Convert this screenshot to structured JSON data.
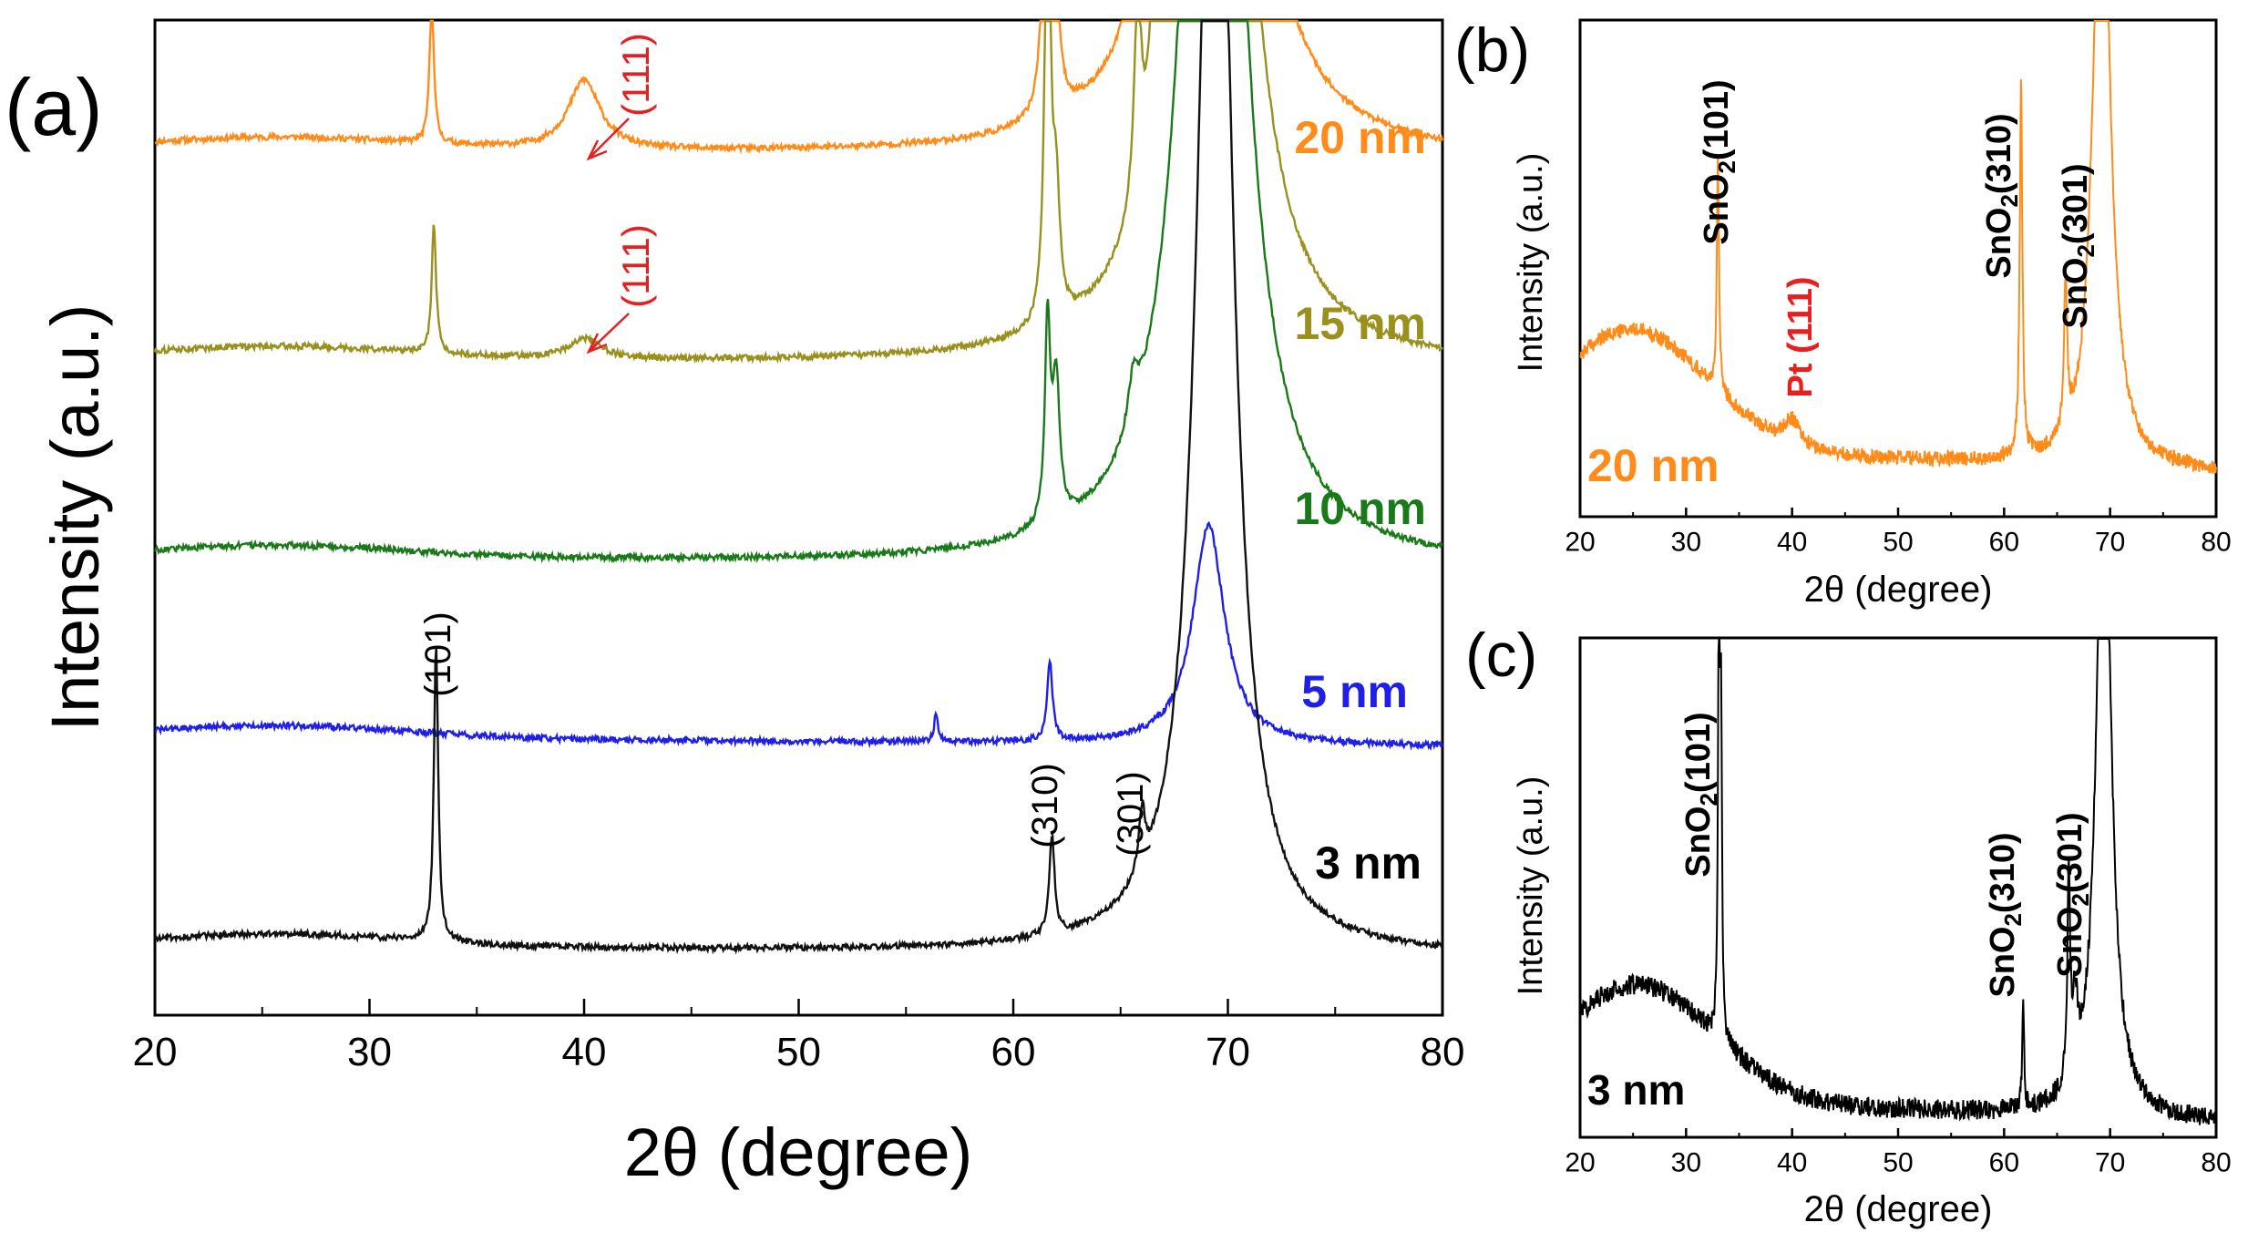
{
  "chart_data": [
    {
      "panel": "(a)",
      "type": "line",
      "xlabel": "2θ (degree)",
      "ylabel": "Intensity (a.u.)",
      "xlim": [
        20,
        80
      ],
      "xticks": [
        "20",
        "30",
        "40",
        "50",
        "60",
        "70",
        "80"
      ],
      "series": [
        {
          "name": "20 nm",
          "color": "#ff8c1a",
          "baseline": 0.87,
          "peaks": [
            [
              32.9,
              0.15,
              0.12
            ],
            [
              40.0,
              0.07,
              0.9
            ],
            [
              61.6,
              0.62,
              0.15
            ],
            [
              62.0,
              0.08,
              0.2
            ],
            [
              65.8,
              0.22,
              0.18
            ],
            [
              66.4,
              0.05,
              0.3
            ],
            [
              69.3,
              1.4,
              1.3
            ]
          ]
        },
        {
          "name": "15 nm",
          "color": "#99901e",
          "baseline": 0.66,
          "peaks": [
            [
              33.0,
              0.13,
              0.12
            ],
            [
              40.0,
              0.02,
              0.9
            ],
            [
              61.6,
              0.5,
              0.15
            ],
            [
              62.0,
              0.12,
              0.2
            ],
            [
              65.8,
              0.2,
              0.2
            ],
            [
              66.6,
              0.15,
              0.3
            ],
            [
              69.3,
              1.4,
              1.3
            ]
          ]
        },
        {
          "name": "10 nm",
          "color": "#1a7a1a",
          "baseline": 0.46,
          "peaks": [
            [
              61.6,
              0.2,
              0.15
            ],
            [
              62.0,
              0.14,
              0.2
            ],
            [
              65.6,
              0.05,
              0.3
            ],
            [
              69.3,
              1.4,
              1.3
            ]
          ]
        },
        {
          "name": "5 nm",
          "color": "#1f1fe8",
          "baseline": 0.28,
          "peaks": [
            [
              56.4,
              0.03,
              0.1
            ],
            [
              61.7,
              0.08,
              0.15
            ],
            [
              69.1,
              0.22,
              0.9
            ]
          ]
        },
        {
          "name": "3 nm",
          "color": "#111111",
          "baseline": 0.07,
          "peaks": [
            [
              33.1,
              0.3,
              0.12
            ],
            [
              61.8,
              0.1,
              0.15
            ],
            [
              66.0,
              0.06,
              0.18
            ],
            [
              69.4,
              1.4,
              0.9
            ]
          ]
        }
      ],
      "series_labels": [
        "20 nm",
        "15 nm",
        "10 nm",
        "5 nm",
        "3 nm"
      ],
      "annotations": {
        "red_111_top": "(111)",
        "red_111_mid": "(111)",
        "peak_101": "(101)",
        "peak_310": "(310)",
        "peak_301": "(301)"
      }
    },
    {
      "panel": "(b)",
      "type": "line",
      "xlabel": "2θ (degree)",
      "ylabel": "Intensity (a.u.)",
      "xlim": [
        20,
        80
      ],
      "xticks": [
        "20",
        "30",
        "40",
        "50",
        "60",
        "70",
        "80"
      ],
      "sample_label": "20 nm",
      "series": [
        {
          "name": "20 nm",
          "color": "#ff8c1a",
          "baseline": 0.14,
          "hump": [
            0.24,
            25,
            5
          ],
          "peaks": [
            [
              33.0,
              0.47,
              0.12
            ],
            [
              40.0,
              0.05,
              0.8
            ],
            [
              61.6,
              0.75,
              0.15
            ],
            [
              65.8,
              0.3,
              0.18
            ],
            [
              69.2,
              1.4,
              0.9
            ]
          ]
        }
      ],
      "annotations": {
        "sno2_101": [
          "SnO",
          "2",
          "(101)"
        ],
        "pt_111": "Pt (111)",
        "sno2_310": [
          "SnO",
          "2",
          "(310)"
        ],
        "sno2_301": [
          "SnO",
          "2",
          "(301)"
        ]
      }
    },
    {
      "panel": "(c)",
      "type": "line",
      "xlabel": "2θ (degree)",
      "ylabel": "Intensity (a.u.)",
      "xlim": [
        20,
        80
      ],
      "xticks": [
        "20",
        "30",
        "40",
        "50",
        "60",
        "70",
        "80"
      ],
      "sample_label": "3 nm",
      "series": [
        {
          "name": "3 nm",
          "color": "#000000",
          "baseline": 0.08,
          "hump": [
            0.23,
            25.5,
            5
          ],
          "peaks": [
            [
              33.1,
              0.85,
              0.1
            ],
            [
              33.3,
              0.6,
              0.1
            ],
            [
              61.8,
              0.22,
              0.1
            ],
            [
              66.1,
              0.42,
              0.15
            ],
            [
              66.7,
              0.15,
              0.3
            ],
            [
              69.4,
              1.4,
              0.8
            ]
          ]
        }
      ],
      "annotations": {
        "sno2_101": [
          "SnO",
          "2",
          "(101)"
        ],
        "sno2_310": [
          "SnO",
          "2",
          "(310)"
        ],
        "sno2_301": [
          "SnO",
          "2",
          "(301)"
        ]
      }
    }
  ]
}
